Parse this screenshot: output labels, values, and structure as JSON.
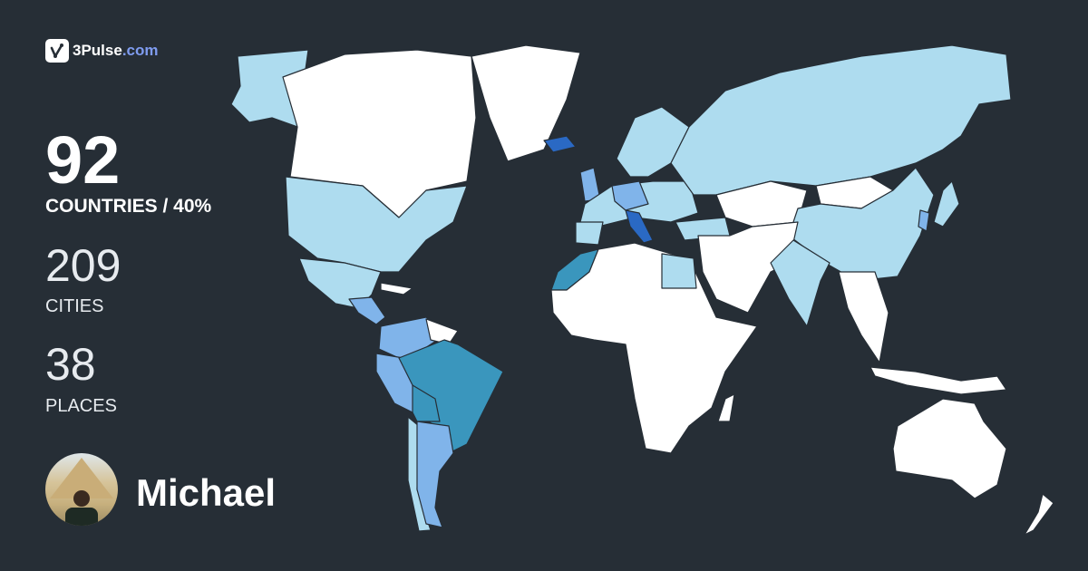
{
  "brand": {
    "name": "3Pulse",
    "tld": ".com",
    "icon": "pulse-check-icon"
  },
  "stats": {
    "countries_value": "92",
    "countries_label": "COUNTRIES / 40%",
    "cities_value": "209",
    "cities_label": "CITIES",
    "places_value": "38",
    "places_label": "PLACES"
  },
  "user": {
    "name": "Michael"
  },
  "colors": {
    "background": "#262e36",
    "unvisited": "#ffffff",
    "visited_light": "#aedcef",
    "visited_medium": "#80b4ea",
    "visited_strong": "#3a96bd",
    "visited_darkest": "#2a69c4",
    "brand_accent": "#7f9cf0"
  }
}
